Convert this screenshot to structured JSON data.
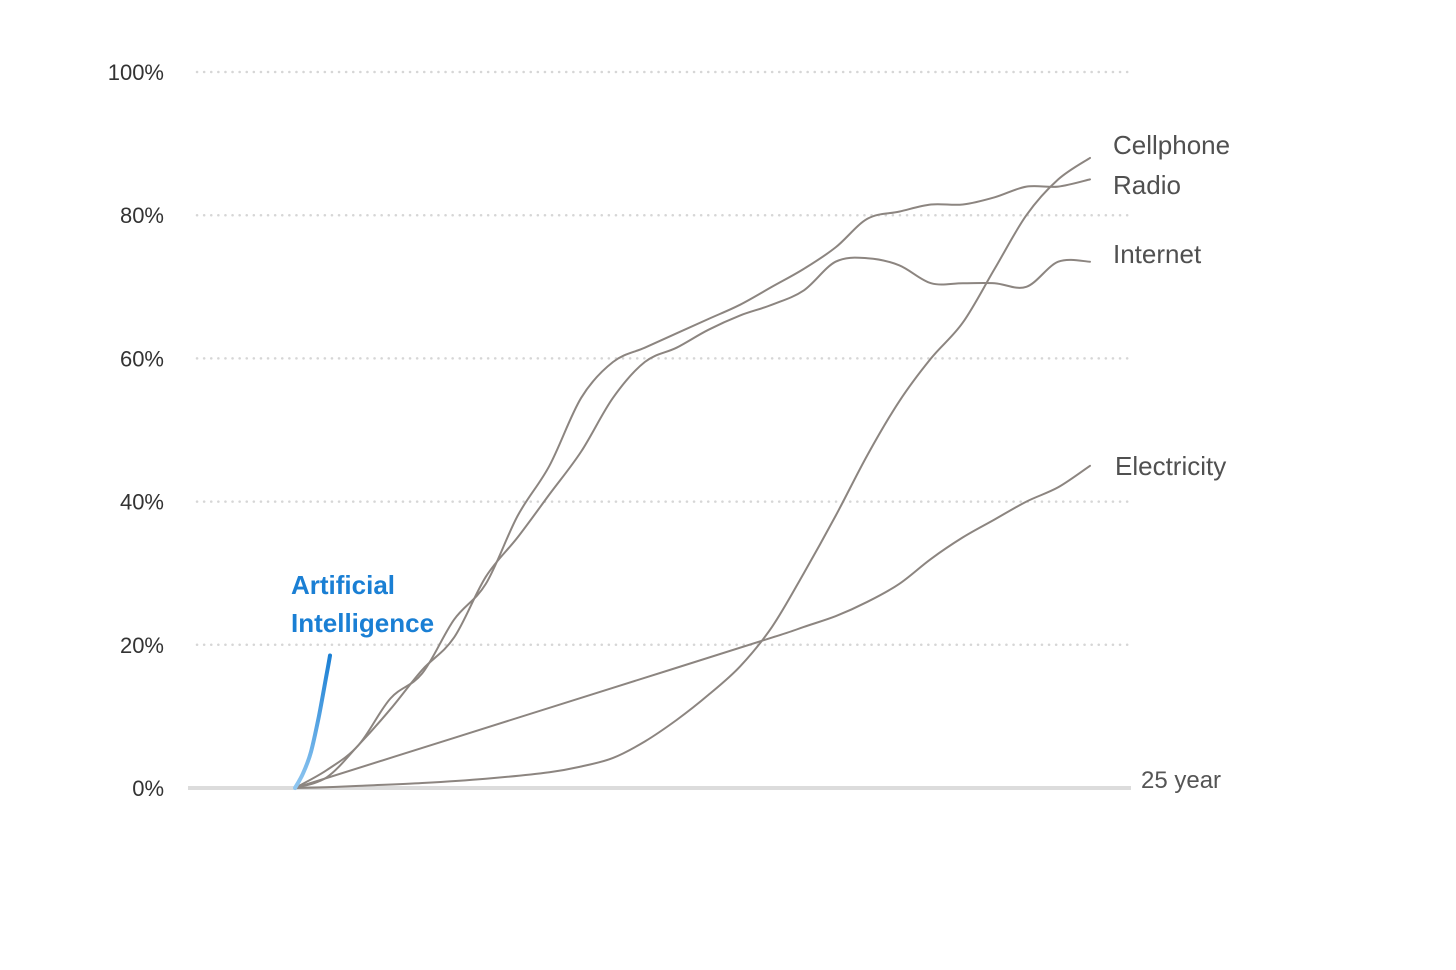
{
  "chart_data": {
    "type": "line",
    "title": "",
    "xlabel": "",
    "ylabel": "",
    "x_unit": "year",
    "xlim": [
      0,
      25
    ],
    "ylim": [
      0,
      100
    ],
    "y_ticks": [
      "0%",
      "20%",
      "40%",
      "60%",
      "80%",
      "100%"
    ],
    "x_end_label": "25 year",
    "grid": "horizontal dotted",
    "colors": {
      "series": "#8c8580",
      "highlight": "#1a7fd4",
      "highlight_light": "#8fc6f0",
      "grid": "#d6d6d6",
      "baseline": "#dcdcdc"
    },
    "series": [
      {
        "name": "Cellphone",
        "x": [
          0,
          1,
          2,
          4,
          6,
          8,
          9,
          10,
          11,
          12,
          13,
          14,
          15,
          16,
          17,
          18,
          19,
          20,
          21,
          22,
          23,
          24,
          25
        ],
        "y": [
          0,
          0.1,
          0.3,
          0.7,
          1.3,
          2.2,
          3,
          4.2,
          6.5,
          9.5,
          13,
          17,
          22.5,
          30,
          38,
          46.5,
          54,
          60,
          65,
          72.5,
          80,
          85,
          88
        ]
      },
      {
        "name": "Radio",
        "x": [
          0,
          1,
          2,
          3,
          4,
          5,
          6,
          7,
          8,
          9,
          10,
          11,
          12,
          13,
          14,
          15,
          16,
          17,
          18,
          19,
          20,
          21,
          22,
          23,
          24,
          25
        ],
        "y": [
          0,
          2.5,
          6,
          12.5,
          16,
          23.5,
          28.5,
          38,
          45,
          54.5,
          59.5,
          61.5,
          63.5,
          65.5,
          67.5,
          70,
          72.5,
          75.5,
          79.5,
          80.5,
          81.5,
          81.5,
          82.5,
          84,
          84,
          85
        ]
      },
      {
        "name": "Internet",
        "x": [
          0,
          1,
          2,
          3,
          4,
          5,
          6,
          7,
          8,
          9,
          10,
          11,
          12,
          13,
          14,
          15,
          16,
          17,
          18,
          19,
          20,
          21,
          22,
          23,
          24,
          25
        ],
        "y": [
          0,
          1.5,
          6,
          11,
          16.5,
          21,
          29.5,
          35,
          41,
          47,
          54.5,
          59.5,
          61.5,
          64,
          66,
          67.5,
          69.5,
          73.5,
          74,
          73,
          70.5,
          70.5,
          70.5,
          70,
          73.5,
          73.5
        ]
      },
      {
        "name": "Electricity",
        "x": [
          0,
          5,
          10,
          15,
          16,
          17,
          18,
          19,
          20,
          21,
          22,
          23,
          24,
          25
        ],
        "y": [
          0,
          7,
          14,
          21,
          22.5,
          24,
          26,
          28.5,
          32,
          35,
          37.5,
          40,
          42,
          45
        ]
      },
      {
        "name": "Artificial Intelligence",
        "x": [
          0,
          0.25,
          0.5,
          0.75,
          1,
          1.1
        ],
        "y": [
          0,
          2,
          5,
          10,
          16,
          18.5
        ]
      }
    ],
    "labels": {
      "cellphone": "Cellphone",
      "radio": "Radio",
      "internet": "Internet",
      "electricity": "Electricity",
      "ai_line1": "Artificial",
      "ai_line2": "Intelligence"
    }
  }
}
